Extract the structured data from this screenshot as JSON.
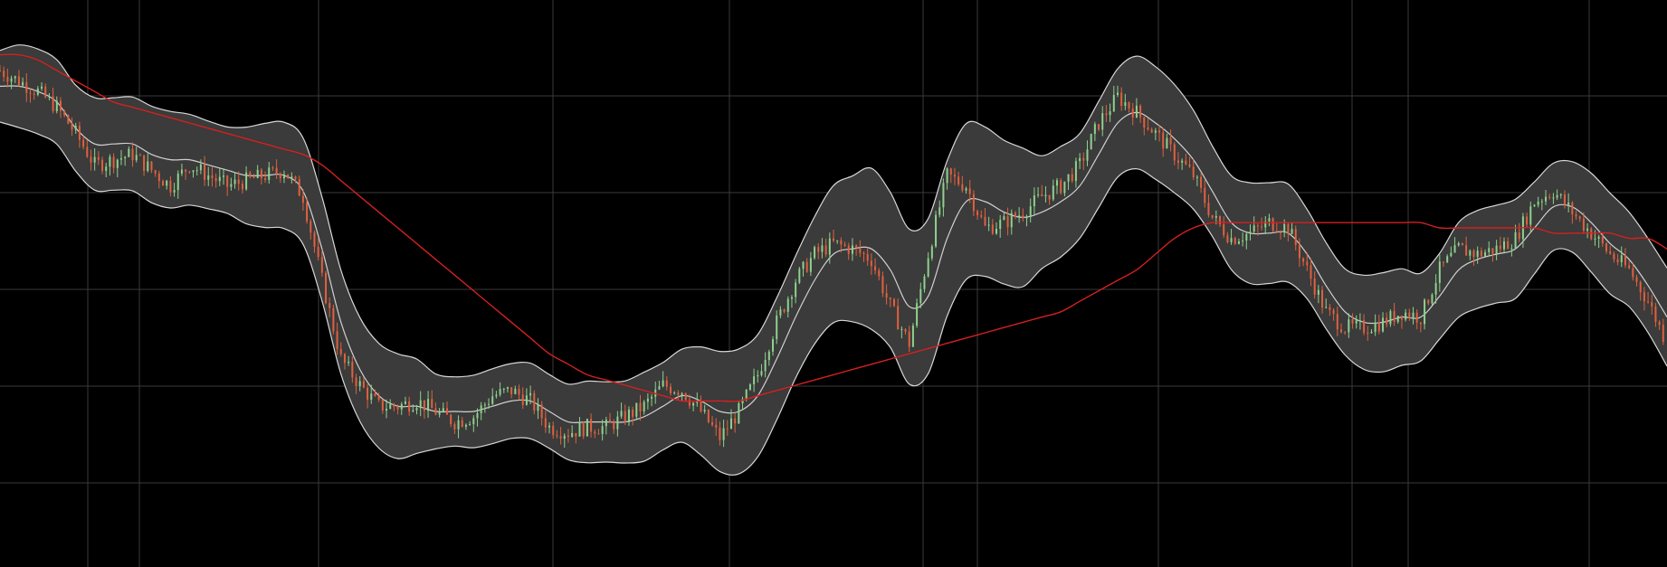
{
  "chart_data": {
    "type": "line",
    "title": "",
    "xlabel": "",
    "ylabel": "",
    "grid": true,
    "legend": "none",
    "x_count": 100,
    "ylim": [
      0,
      100
    ],
    "colors": {
      "background": "#000000",
      "grid": "#3a3a3a",
      "band_fill": "#3a3b3a",
      "band_line": "#d8d8d8",
      "middle_line": "#d0d0d0",
      "long_average": "#d42020",
      "candle_up": "#8fd08f",
      "candle_down": "#e06040"
    },
    "series": [
      {
        "values": [
          90,
          88,
          86,
          83,
          78,
          72,
          73,
          74,
          71,
          68,
          72,
          70,
          68,
          69,
          70,
          71,
          66,
          50,
          35,
          30,
          26,
          26,
          27,
          25,
          23,
          24,
          28,
          29,
          27,
          22,
          21,
          22,
          22,
          24,
          26,
          30,
          29,
          25,
          20,
          25,
          32,
          42,
          50,
          55,
          57,
          56,
          54,
          45,
          38,
          55,
          70,
          68,
          60,
          61,
          63,
          66,
          68,
          72,
          80,
          85,
          82,
          78,
          74,
          70,
          62,
          58,
          59,
          61,
          60,
          52,
          44,
          41,
          41,
          42,
          44,
          43,
          52,
          56,
          55,
          56,
          58,
          65,
          67,
          63,
          59,
          55,
          52,
          46,
          38
        ]
      },
      {
        "values": [
          87,
          87,
          86,
          84,
          79,
          76,
          76,
          76,
          74,
          73,
          73,
          72,
          71,
          70,
          70,
          70,
          67,
          56,
          42,
          33,
          28,
          26,
          26,
          25,
          25,
          25,
          26,
          27,
          27,
          25,
          23,
          23,
          23,
          23,
          24,
          26,
          28,
          27,
          25,
          25,
          28,
          35,
          43,
          50,
          55,
          56,
          56,
          52,
          45,
          47,
          58,
          65,
          65,
          63,
          62,
          63,
          65,
          68,
          74,
          80,
          82,
          80,
          77,
          73,
          67,
          61,
          59,
          59,
          59,
          55,
          49,
          44,
          42,
          42,
          43,
          43,
          47,
          52,
          54,
          55,
          56,
          60,
          64,
          64,
          61,
          57,
          54,
          49,
          43
        ]
      },
      {
        "values": [
          93,
          93,
          92,
          90,
          88,
          86,
          84,
          83,
          82,
          81,
          80,
          79,
          78,
          77,
          76,
          75,
          74,
          72,
          69,
          66,
          63,
          60,
          57,
          54,
          51,
          48,
          45,
          42,
          39,
          36,
          34,
          32,
          31,
          30,
          29,
          28,
          27,
          27,
          27,
          27,
          28,
          29,
          30,
          31,
          32,
          33,
          34,
          35,
          36,
          37,
          38,
          39,
          40,
          41,
          42,
          43,
          44,
          46,
          48,
          50,
          52,
          55,
          58,
          60,
          61,
          61,
          61,
          61,
          61,
          61,
          61,
          61,
          61,
          61,
          61,
          61,
          60,
          60,
          60,
          60,
          60,
          60,
          59,
          59,
          59,
          59,
          58,
          58,
          56
        ]
      }
    ]
  }
}
